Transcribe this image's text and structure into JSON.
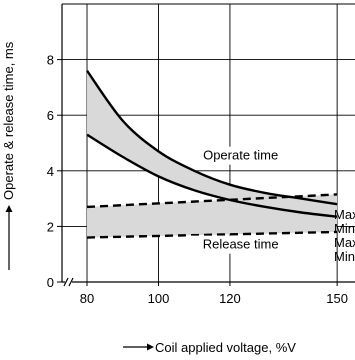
{
  "chart_data": {
    "type": "line",
    "xlabel": "Coil applied voltage, %V",
    "ylabel": "Operate & release time, ms",
    "x_ticks": [
      80,
      100,
      120,
      150
    ],
    "y_ticks": [
      0,
      2,
      4,
      6,
      8
    ],
    "xlim": [
      73,
      155
    ],
    "ylim": [
      0,
      10
    ],
    "grid": true,
    "axis_break": "x",
    "series": [
      {
        "name": "Max.",
        "style": "solid",
        "x": [
          80,
          90,
          100,
          110,
          120,
          130,
          140,
          150
        ],
        "y": [
          7.6,
          5.8,
          4.7,
          4.0,
          3.5,
          3.2,
          3.0,
          2.8
        ]
      },
      {
        "name": "Min.",
        "style": "solid",
        "x": [
          80,
          90,
          100,
          110,
          120,
          130,
          140,
          150
        ],
        "y": [
          5.3,
          4.5,
          3.8,
          3.3,
          2.95,
          2.7,
          2.5,
          2.35
        ]
      },
      {
        "name": "Max.",
        "style": "dashed",
        "x": [
          80,
          150
        ],
        "y": [
          2.7,
          3.15
        ]
      },
      {
        "name": "Min.",
        "style": "dashed",
        "x": [
          80,
          150
        ],
        "y": [
          1.6,
          1.8
        ]
      }
    ],
    "annotations": [
      {
        "text": "Operate time",
        "x": 123,
        "y": 4.4
      },
      {
        "text": "Release time",
        "x": 123,
        "y": 1.2
      }
    ],
    "colors": {
      "line": "#000000",
      "band": "#d9d9d9",
      "grid": "#000000"
    }
  }
}
